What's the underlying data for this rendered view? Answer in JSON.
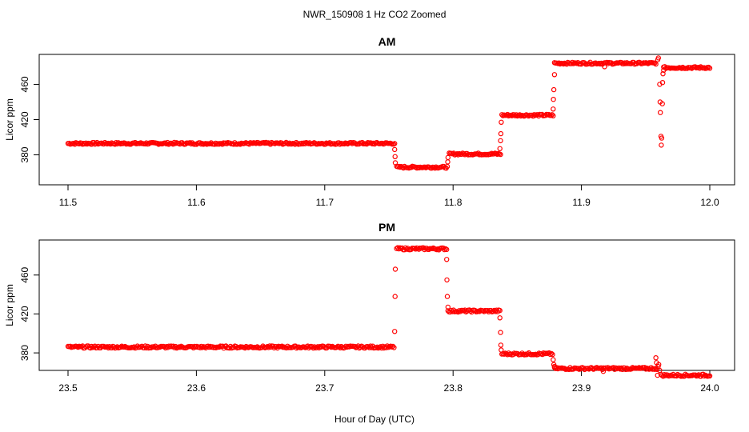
{
  "figure": {
    "title": "NWR_150908  1 Hz CO2 Zoomed",
    "xlabel": "Hour of Day (UTC)"
  },
  "chart_data": [
    {
      "type": "scatter",
      "title": "AM",
      "ylabel": "Licor ppm",
      "xlabel": "",
      "xlim": [
        11.5,
        12.0
      ],
      "ylim": [
        346,
        494
      ],
      "xticks": [
        "11.5",
        "11.6",
        "11.7",
        "11.8",
        "11.9",
        "12.0"
      ],
      "yticks": [
        "380",
        "420",
        "460"
      ],
      "grid": false,
      "marker_color": "#ff0000",
      "series": [
        {
          "segments": [
            {
              "x": [
                11.5,
                11.7545
              ],
              "y": 393
            },
            {
              "x": [
                11.756,
                11.7955
              ],
              "y": 366
            },
            {
              "x": [
                11.797,
                11.837
              ],
              "y": 381
            },
            {
              "x": [
                11.838,
                11.878
              ],
              "y": 425
            },
            {
              "x": [
                11.879,
                11.958
              ],
              "y": 484
            },
            {
              "x": [
                11.964,
                12.0
              ],
              "y": 479
            }
          ],
          "transitions": [
            {
              "x": 11.7545,
              "y": 386
            },
            {
              "x": 11.7548,
              "y": 378
            },
            {
              "x": 11.755,
              "y": 371
            },
            {
              "x": 11.7958,
              "y": 372
            },
            {
              "x": 11.796,
              "y": 377
            },
            {
              "x": 11.8365,
              "y": 387
            },
            {
              "x": 11.837,
              "y": 396
            },
            {
              "x": 11.8372,
              "y": 404
            },
            {
              "x": 11.8375,
              "y": 417
            },
            {
              "x": 11.878,
              "y": 432
            },
            {
              "x": 11.8782,
              "y": 443
            },
            {
              "x": 11.8785,
              "y": 454
            },
            {
              "x": 11.879,
              "y": 471
            },
            {
              "x": 11.918,
              "y": 480
            },
            {
              "x": 11.9595,
              "y": 488
            },
            {
              "x": 11.96,
              "y": 490
            },
            {
              "x": 11.961,
              "y": 460
            },
            {
              "x": 11.9613,
              "y": 440
            },
            {
              "x": 11.9615,
              "y": 428
            },
            {
              "x": 11.962,
              "y": 401
            },
            {
              "x": 11.9622,
              "y": 391
            },
            {
              "x": 11.9625,
              "y": 399
            },
            {
              "x": 11.963,
              "y": 438
            },
            {
              "x": 11.9632,
              "y": 462
            },
            {
              "x": 11.9635,
              "y": 472
            },
            {
              "x": 11.964,
              "y": 476
            }
          ]
        }
      ]
    },
    {
      "type": "scatter",
      "title": "PM",
      "ylabel": "Licor ppm",
      "xlabel": "",
      "xlim": [
        23.5,
        24.0
      ],
      "ylim": [
        362,
        496
      ],
      "xticks": [
        "23.5",
        "23.6",
        "23.7",
        "23.8",
        "23.9",
        "24.0"
      ],
      "yticks": [
        "380",
        "420",
        "460"
      ],
      "grid": false,
      "marker_color": "#ff0000",
      "series": [
        {
          "segments": [
            {
              "x": [
                23.5,
                23.754
              ],
              "y": 386
            },
            {
              "x": [
                23.756,
                23.795
              ],
              "y": 487
            },
            {
              "x": [
                23.796,
                23.8365
              ],
              "y": 423
            },
            {
              "x": [
                23.838,
                23.8775
              ],
              "y": 379
            },
            {
              "x": [
                23.879,
                23.958
              ],
              "y": 364
            },
            {
              "x": [
                23.962,
                24.0
              ],
              "y": 357
            }
          ],
          "transitions": [
            {
              "x": 23.7545,
              "y": 402
            },
            {
              "x": 23.7548,
              "y": 438
            },
            {
              "x": 23.755,
              "y": 466
            },
            {
              "x": 23.795,
              "y": 476
            },
            {
              "x": 23.7952,
              "y": 455
            },
            {
              "x": 23.7955,
              "y": 438
            },
            {
              "x": 23.796,
              "y": 427
            },
            {
              "x": 23.8365,
              "y": 416
            },
            {
              "x": 23.837,
              "y": 401
            },
            {
              "x": 23.8372,
              "y": 388
            },
            {
              "x": 23.8375,
              "y": 383
            },
            {
              "x": 23.878,
              "y": 373
            },
            {
              "x": 23.8785,
              "y": 368
            },
            {
              "x": 23.879,
              "y": 366
            },
            {
              "x": 23.917,
              "y": 361
            },
            {
              "x": 23.958,
              "y": 375
            },
            {
              "x": 23.9585,
              "y": 370
            },
            {
              "x": 23.959,
              "y": 363
            },
            {
              "x": 23.9593,
              "y": 357
            },
            {
              "x": 23.9598,
              "y": 366
            },
            {
              "x": 23.9602,
              "y": 368
            },
            {
              "x": 23.961,
              "y": 362
            }
          ]
        }
      ]
    }
  ]
}
